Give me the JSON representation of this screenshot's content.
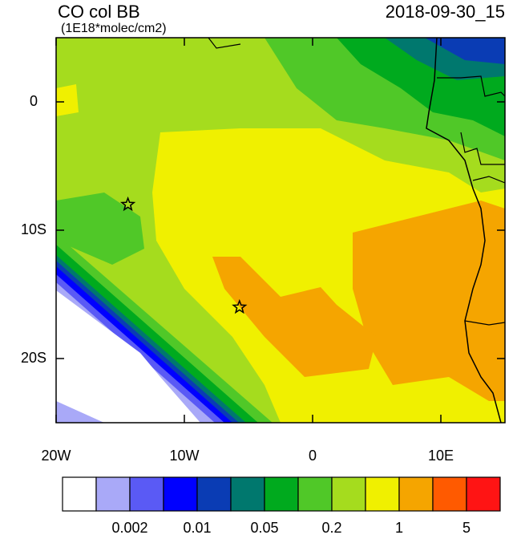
{
  "map": {
    "title": "CO col BB",
    "units": "(1E18*molec/cm2)",
    "time": "2018-09-30_15",
    "lonlim": [
      -20,
      15
    ],
    "latlim": [
      -25,
      5
    ],
    "xticks": [
      {
        "value": -20,
        "label": "20W"
      },
      {
        "value": -10,
        "label": "10W"
      },
      0,
      {
        "value": 10,
        "label": "10E"
      }
    ],
    "yticks": [
      0,
      {
        "value": -10,
        "label": "10S"
      },
      {
        "value": -20,
        "label": "20S"
      }
    ],
    "markers": [
      {
        "lon": -14.4,
        "lat": -8
      },
      {
        "lon": -5.7,
        "lat": -16
      }
    ],
    "colorbar": {
      "colors": [
        "#ffffff",
        "#a9a9f8",
        "#5a5af5",
        "#0000ff",
        "#0a3cb4",
        "#00786e",
        "#00aa1e",
        "#50c828",
        "#a5dc1e",
        "#f0f000",
        "#f5a500",
        "#ff5a00",
        "#ff1414"
      ],
      "labels": [
        "0.002",
        "0.01",
        "0.05",
        "0.2",
        "1",
        "5"
      ]
    }
  }
}
